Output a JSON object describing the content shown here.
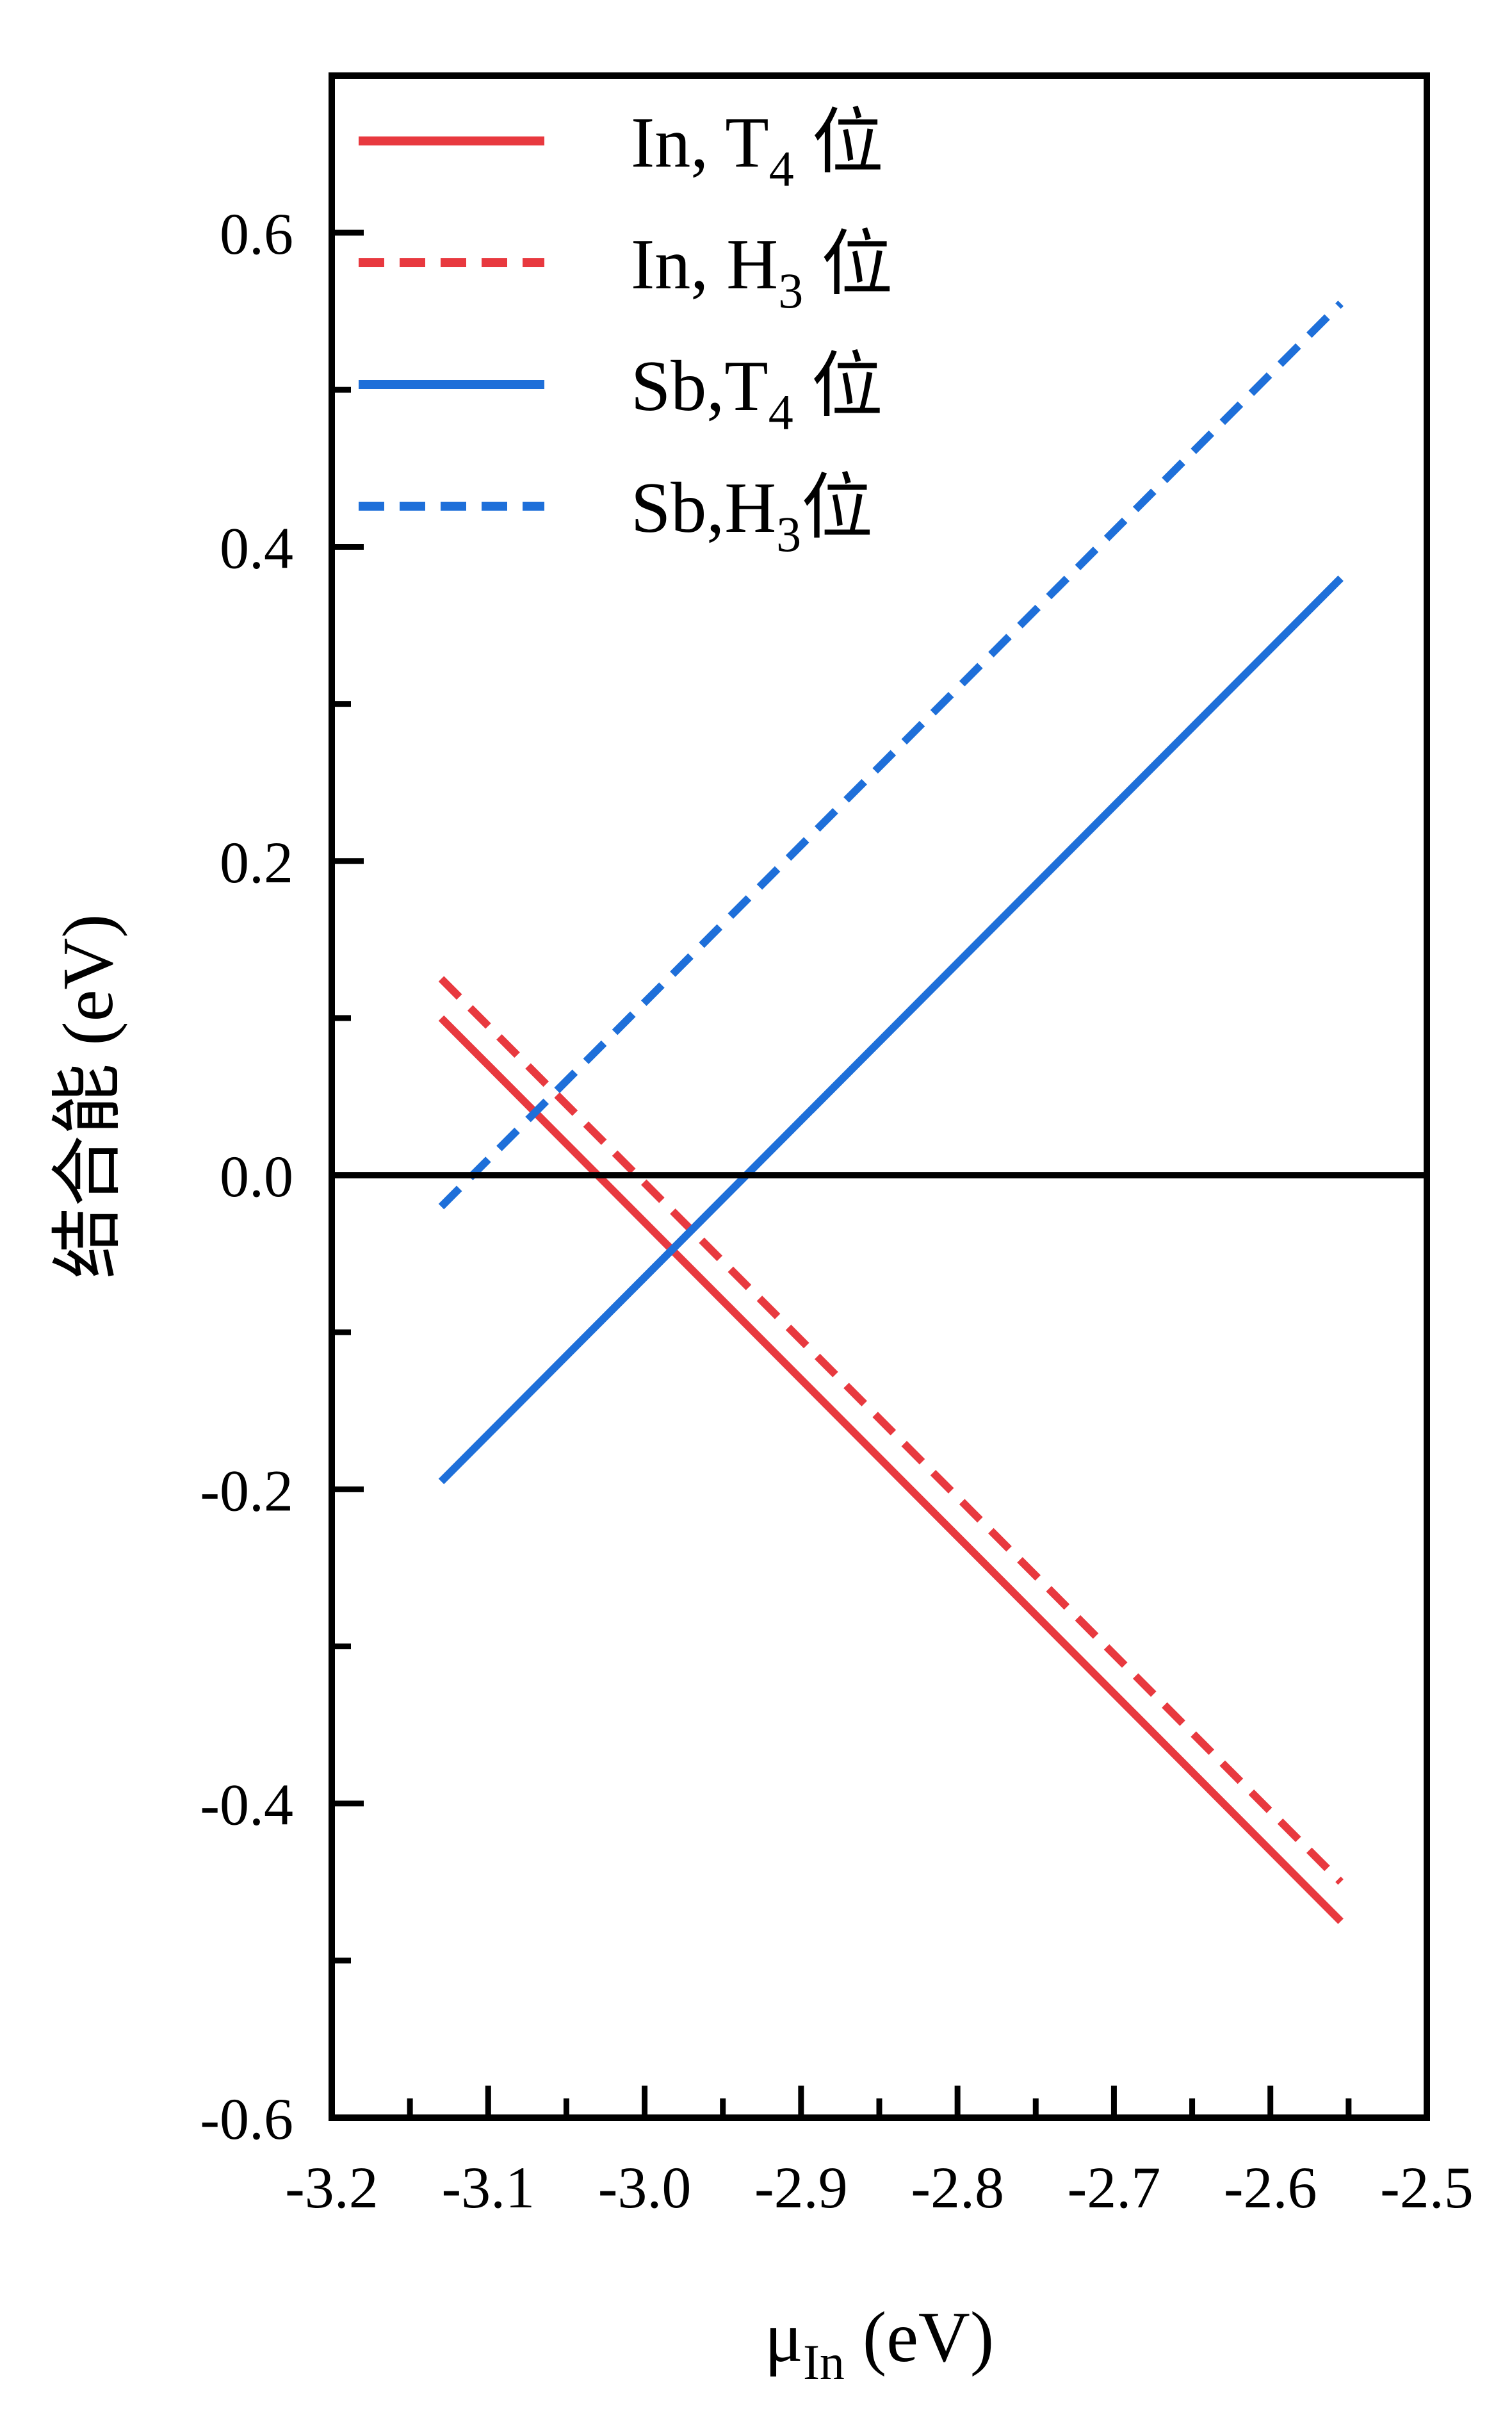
{
  "chart_data": {
    "type": "line",
    "xlabel": "μ",
    "xlabel_sub": "In",
    "xlabel_unit": "(eV)",
    "ylabel": "结合能 (eV)",
    "xlim": [
      -3.2,
      -2.5
    ],
    "ylim": [
      -0.6,
      0.7
    ],
    "xticks": [
      -3.2,
      -3.1,
      -3.0,
      -2.9,
      -2.8,
      -2.7,
      -2.6,
      -2.5
    ],
    "xtick_labels": [
      "-3.2",
      "-3.1",
      "-3.0",
      "-2.9",
      "-2.8",
      "-2.7",
      "-2.6",
      "-2.5"
    ],
    "yticks": [
      -0.6,
      -0.4,
      -0.2,
      0.0,
      0.2,
      0.4,
      0.6
    ],
    "ytick_labels": [
      "-0.6",
      "-0.4",
      "-0.2",
      "0.0",
      "0.2",
      "0.4",
      "0.6"
    ],
    "grid": false,
    "legend_position": "top-left",
    "zero_line": true,
    "series": [
      {
        "legend_main": "In, T",
        "legend_sub": "4",
        "legend_suffix": " 位",
        "color": "#e8393f",
        "dash": false,
        "x": [
          -3.13,
          -2.555
        ],
        "y": [
          0.1,
          -0.475
        ]
      },
      {
        "legend_main": "In, H",
        "legend_sub": "3",
        "legend_suffix": " 位",
        "color": "#e8393f",
        "dash": true,
        "x": [
          -3.13,
          -2.555
        ],
        "y": [
          0.125,
          -0.45
        ]
      },
      {
        "legend_main": "Sb,T",
        "legend_sub": "4",
        "legend_suffix": " 位",
        "color": "#1e6fd9",
        "dash": false,
        "x": [
          -3.13,
          -2.555
        ],
        "y": [
          -0.195,
          0.38
        ]
      },
      {
        "legend_main": "Sb,H",
        "legend_sub": "3",
        "legend_suffix": "位",
        "color": "#1e6fd9",
        "dash": true,
        "x": [
          -3.13,
          -2.555
        ],
        "y": [
          -0.02,
          0.555
        ]
      }
    ]
  }
}
